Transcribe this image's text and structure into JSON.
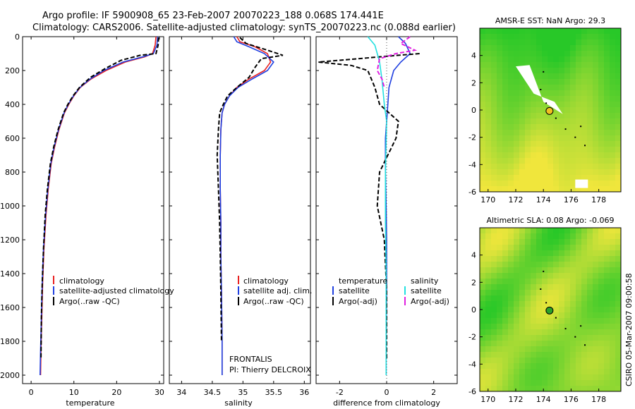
{
  "title_line1": "Argo profile: IF 5900908_65 23-Feb-2007 20070223_188 0.068S 174.441E",
  "title_line2": "Climatology: CARS2006. Satellite-adjusted climatology: synTS_20070223.nc (0.088d earlier)",
  "credit": "CSIRO 05-Mar-2007 09:00:58",
  "colors": {
    "climatology": "#e82020",
    "satellite": "#1f3fe0",
    "argo": "#000000",
    "sal_satellite": "#22e0e0",
    "sal_argo": "#e020e0",
    "map_green": "#28c828",
    "map_yellow": "#f0e040"
  },
  "chart_data": [
    {
      "type": "line",
      "name": "temperature-profile",
      "xlabel": "temperature",
      "ylabel": "",
      "xlim": [
        -2,
        31
      ],
      "ylim": [
        2050,
        0
      ],
      "x_ticks": [
        0,
        10,
        20,
        30
      ],
      "y_ticks": [
        0,
        200,
        400,
        600,
        800,
        1000,
        1200,
        1400,
        1600,
        1800,
        2000
      ],
      "legend": [
        "climatology",
        "satellite-adjusted climatology",
        "Argo(..raw -QC)"
      ],
      "series": [
        {
          "name": "climatology",
          "style": "solid",
          "color": "#e82020",
          "x": [
            29.2,
            29.0,
            28.4,
            26.5,
            22.0,
            17.5,
            14.0,
            11.5,
            10.0,
            8.8,
            7.8,
            6.5,
            5.5,
            4.7,
            4.0,
            3.5,
            3.0,
            2.7,
            2.5,
            2.3,
            2.2
          ],
          "y": [
            0,
            50,
            100,
            120,
            150,
            200,
            250,
            300,
            350,
            400,
            450,
            550,
            650,
            750,
            900,
            1050,
            1250,
            1450,
            1650,
            1850,
            2000
          ]
        },
        {
          "name": "satellite-adjusted climatology",
          "style": "solid",
          "color": "#1f3fe0",
          "x": [
            29.6,
            29.4,
            28.6,
            26.0,
            21.5,
            17.0,
            13.8,
            11.4,
            9.9,
            8.7,
            7.7,
            6.4,
            5.4,
            4.6,
            3.9,
            3.4,
            2.9,
            2.6,
            2.4,
            2.2,
            2.1
          ],
          "y": [
            0,
            50,
            100,
            120,
            150,
            200,
            250,
            300,
            350,
            400,
            450,
            550,
            650,
            750,
            900,
            1050,
            1250,
            1450,
            1650,
            1850,
            2000
          ]
        },
        {
          "name": "Argo(..raw -QC)",
          "style": "dashed",
          "color": "#000000",
          "x": [
            29.8,
            29.7,
            29.2,
            25.5,
            21.0,
            17.2,
            13.9,
            11.3,
            9.8,
            8.6,
            7.6,
            6.3,
            5.3,
            4.5,
            3.8,
            3.3,
            2.9,
            2.6,
            2.4,
            2.3
          ],
          "y": [
            5,
            50,
            100,
            110,
            140,
            190,
            240,
            300,
            350,
            400,
            450,
            550,
            650,
            750,
            900,
            1050,
            1250,
            1450,
            1650,
            1900
          ]
        }
      ]
    },
    {
      "type": "line",
      "name": "salinity-profile",
      "xlabel": "salinity",
      "ylabel": "",
      "xlim": [
        33.8,
        36.1
      ],
      "ylim": [
        2050,
        0
      ],
      "x_ticks": [
        34,
        34.5,
        35,
        35.5,
        36
      ],
      "legend": [
        "climatology",
        "satellite adj. clim.",
        "Argo(..raw -QC)"
      ],
      "annotations": [
        "FRONTALIS",
        "PI: Thierry DELCROIX"
      ],
      "series": [
        {
          "name": "climatology",
          "style": "solid",
          "color": "#e82020",
          "x": [
            34.9,
            34.95,
            35.2,
            35.4,
            35.45,
            35.35,
            35.1,
            34.9,
            34.78,
            34.7,
            34.66,
            34.64,
            34.63,
            34.63,
            34.64,
            34.64,
            34.65,
            34.66,
            34.66
          ],
          "y": [
            0,
            30,
            60,
            100,
            150,
            200,
            250,
            300,
            350,
            400,
            450,
            550,
            700,
            900,
            1100,
            1300,
            1500,
            1800,
            2000
          ]
        },
        {
          "name": "satellite adj. clim.",
          "style": "solid",
          "color": "#1f3fe0",
          "x": [
            34.85,
            34.9,
            35.1,
            35.35,
            35.5,
            35.4,
            35.15,
            34.92,
            34.78,
            34.7,
            34.66,
            34.64,
            34.63,
            34.63,
            34.64,
            34.64,
            34.65,
            34.66,
            34.66
          ],
          "y": [
            0,
            30,
            60,
            100,
            150,
            200,
            250,
            300,
            350,
            400,
            450,
            550,
            700,
            900,
            1100,
            1300,
            1500,
            1800,
            2000
          ]
        },
        {
          "name": "Argo(..raw -QC)",
          "style": "dashed",
          "color": "#000000",
          "x": [
            34.95,
            35.05,
            35.4,
            35.65,
            35.3,
            35.2,
            35.1,
            34.9,
            34.75,
            34.68,
            34.62,
            34.6,
            34.58,
            34.6,
            34.62,
            34.63,
            34.64,
            34.65
          ],
          "y": [
            5,
            40,
            80,
            110,
            130,
            180,
            240,
            300,
            350,
            400,
            450,
            550,
            700,
            900,
            1100,
            1300,
            1500,
            1800
          ]
        }
      ]
    },
    {
      "type": "line",
      "name": "difference-profile",
      "xlabel": "difference from climatology",
      "ylabel": "",
      "xlim": [
        -3,
        3
      ],
      "ylim": [
        2050,
        0
      ],
      "x_ticks": [
        -2,
        0,
        2
      ],
      "legend": [
        "temperature",
        "satellite",
        "Argo(-adj)",
        "salinity",
        "satellite",
        "Argo(-adj)"
      ],
      "series": [
        {
          "name": "temperature satellite",
          "style": "solid",
          "color": "#1f3fe0",
          "x": [
            0.5,
            0.8,
            1.0,
            0.6,
            0.3,
            0.1,
            0.05,
            0.0,
            -0.05,
            -0.05,
            -0.02,
            0.0,
            0.0,
            -0.02,
            -0.02
          ],
          "y": [
            0,
            40,
            100,
            150,
            200,
            300,
            400,
            500,
            600,
            800,
            1000,
            1200,
            1500,
            1800,
            2000
          ]
        },
        {
          "name": "temperature Argo(-adj)",
          "style": "dashed",
          "color": "#000000",
          "x": [
            1.4,
            0.5,
            -2.9,
            -1.5,
            -0.8,
            -0.5,
            -0.3,
            0.5,
            0.4,
            -0.3,
            -0.4,
            -0.1,
            0.0,
            0.0
          ],
          "y": [
            100,
            110,
            150,
            170,
            200,
            300,
            400,
            500,
            600,
            800,
            1000,
            1200,
            1500,
            1900
          ]
        },
        {
          "name": "salinity satellite",
          "style": "solid",
          "color": "#22e0e0",
          "x": [
            -0.8,
            -0.5,
            -0.4,
            -0.3,
            -0.2,
            -0.1,
            0.0,
            -0.05,
            -0.05,
            -0.02,
            -0.02,
            -0.02
          ],
          "y": [
            0,
            50,
            100,
            150,
            250,
            400,
            500,
            800,
            1100,
            1400,
            1700,
            2000
          ]
        },
        {
          "name": "salinity Argo(-adj)",
          "style": "dashed",
          "color": "#e020e0",
          "x": [
            1.0,
            0.6,
            1.2,
            0.4,
            -0.3,
            -0.4,
            -0.2,
            -0.1
          ],
          "y": [
            0,
            40,
            80,
            100,
            130,
            200,
            250,
            300
          ]
        }
      ]
    },
    {
      "type": "heatmap",
      "name": "sst-map",
      "title": "AMSR-E SST: NaN Argo: 29.3",
      "xlim": [
        169.4,
        179.6
      ],
      "ylim": [
        -6,
        6
      ],
      "x_ticks": [
        170,
        172,
        174,
        176,
        178
      ],
      "y_ticks": [
        -6,
        -4,
        -2,
        0,
        2,
        4
      ],
      "marker": {
        "lon": 174.441,
        "lat": -0.068
      }
    },
    {
      "type": "heatmap",
      "name": "sla-map",
      "title": "Altimetric SLA: 0.08 Argo: -0.069",
      "xlim": [
        169.4,
        179.6
      ],
      "ylim": [
        -6,
        6
      ],
      "x_ticks": [
        170,
        172,
        174,
        176,
        178
      ],
      "y_ticks": [
        -6,
        -4,
        -2,
        0,
        2,
        4
      ],
      "marker": {
        "lon": 174.441,
        "lat": -0.068
      }
    }
  ]
}
